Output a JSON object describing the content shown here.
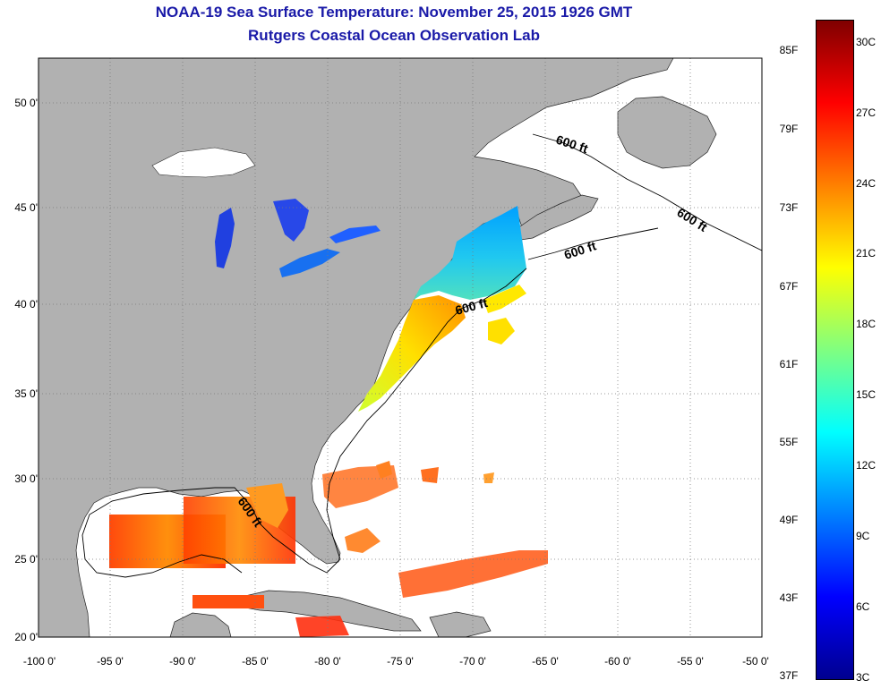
{
  "title_line1": "NOAA-19 Sea Surface Temperature:  November 25, 2015 1926 GMT",
  "title_line2": "Rutgers Coastal Ocean Observation Lab",
  "latitude_ticks": [
    "50 0'",
    "45 0'",
    "40 0'",
    "35 0'",
    "30 0'",
    "25 0'",
    "20 0'"
  ],
  "longitude_ticks": [
    "-100 0'",
    "-95 0'",
    "-90 0'",
    "-85 0'",
    "-80 0'",
    "-75 0'",
    "-70 0'",
    "-65 0'",
    "-60 0'",
    "-55 0'",
    "-50 0'"
  ],
  "contour_label": "600 ft",
  "colorbar": {
    "fahrenheit_labels": [
      "85F",
      "79F",
      "73F",
      "67F",
      "61F",
      "55F",
      "49F",
      "43F",
      "37F"
    ],
    "celsius_labels": [
      "30C",
      "27C",
      "24C",
      "21C",
      "18C",
      "15C",
      "12C",
      "9C",
      "6C",
      "3C"
    ],
    "colors": [
      "#7f0000",
      "#ff0000",
      "#ff8000",
      "#ffff00",
      "#80ff80",
      "#00ffff",
      "#0080ff",
      "#0000ff",
      "#00008f"
    ]
  },
  "colors": {
    "land": "#b1b1b1",
    "ocean_nodata": "#ffffff",
    "title": "#1a1aa8"
  }
}
